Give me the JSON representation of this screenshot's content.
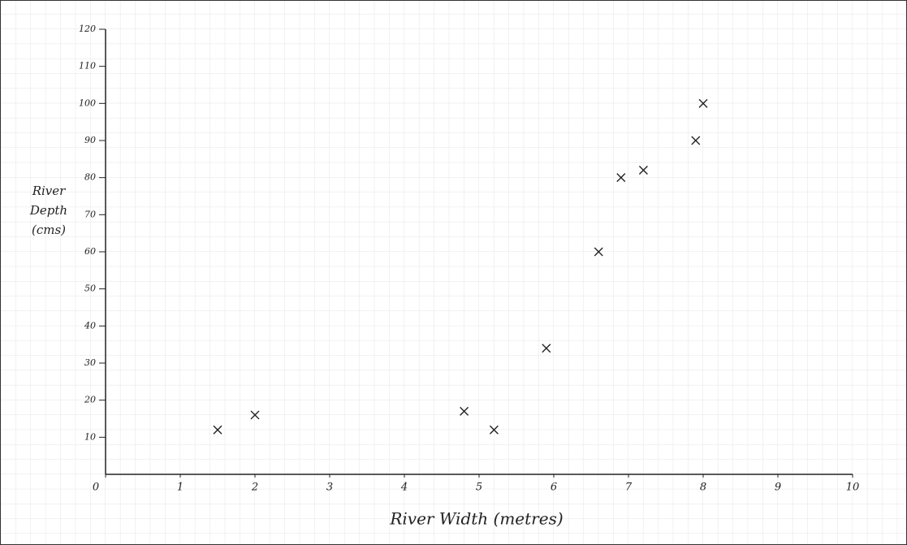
{
  "chart_data": {
    "type": "scatter",
    "x_label": "River Width (metres)",
    "y_label": [
      "River",
      "Depth",
      "(cms)"
    ],
    "xlim": [
      0,
      10
    ],
    "xticks": [
      0,
      1,
      2,
      3,
      4,
      5,
      6,
      7,
      8,
      9,
      10
    ],
    "ylim": [
      0,
      120
    ],
    "yticks": [
      10,
      20,
      30,
      40,
      50,
      60,
      70,
      80,
      90,
      100,
      110,
      120
    ],
    "color": "#222222",
    "x": [
      1.5,
      2,
      4.8,
      5.2,
      5.9,
      6.6,
      6.9,
      7.2,
      7.9,
      8
    ],
    "values": [
      12,
      16,
      17,
      12,
      34,
      60,
      80,
      82,
      90,
      100
    ]
  }
}
